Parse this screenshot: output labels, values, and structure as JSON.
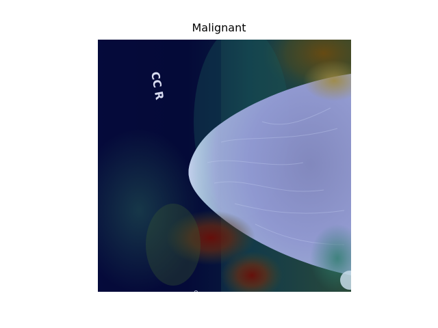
{
  "figure": {
    "title": "Malignant",
    "image": {
      "description_icon": "mammogram-heatmap-image",
      "marker_text": "CC R"
    }
  },
  "colors": {
    "background": "#ffffff",
    "title_text": "#000000",
    "heatmap_low": "#00003a",
    "heatmap_mid": "#1a6a6a",
    "heatmap_high": "#7a1a0a",
    "tissue": "#9aa0dc"
  }
}
